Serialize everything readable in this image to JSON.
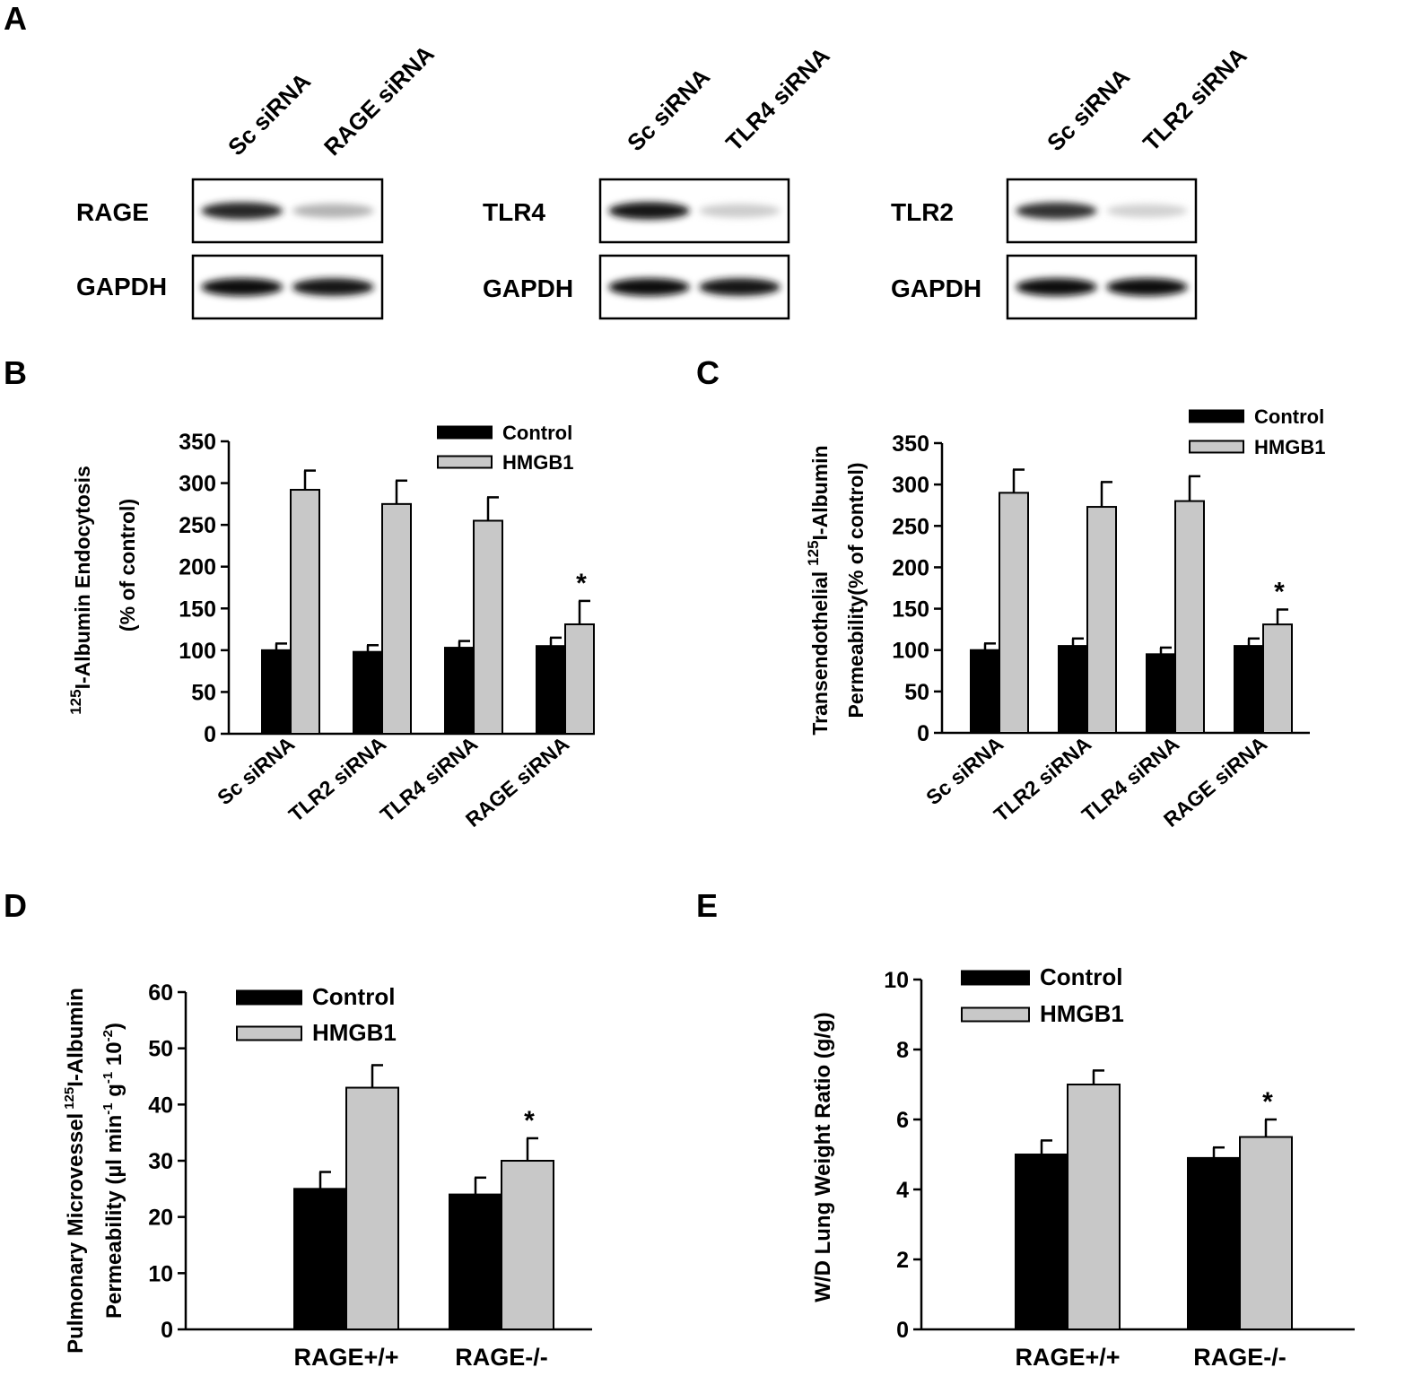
{
  "panel_a": {
    "letter": "A",
    "blots": [
      {
        "lanes": [
          "Sc siRNA",
          "RAGE siRNA"
        ],
        "rows": [
          {
            "label": "RAGE",
            "intensity": [
              0.85,
              0.3
            ]
          },
          {
            "label": "GAPDH",
            "intensity": [
              0.95,
              0.92
            ]
          }
        ]
      },
      {
        "lanes": [
          "Sc siRNA",
          "TLR4 siRNA"
        ],
        "rows": [
          {
            "label": "TLR4",
            "intensity": [
              0.9,
              0.2
            ]
          },
          {
            "label": "GAPDH",
            "intensity": [
              0.95,
              0.9
            ]
          }
        ]
      },
      {
        "lanes": [
          "Sc siRNA",
          "TLR2 siRNA"
        ],
        "rows": [
          {
            "label": "TLR2",
            "intensity": [
              0.8,
              0.18
            ]
          },
          {
            "label": "GAPDH",
            "intensity": [
              0.97,
              0.95
            ]
          }
        ]
      }
    ]
  },
  "colors": {
    "control": "#000000",
    "hmgb1": "#c8c8c8"
  },
  "chart_data": [
    {
      "panel": "B",
      "type": "bar",
      "categories": [
        "Sc siRNA",
        "TLR2 siRNA",
        "TLR4 siRNA",
        "RAGE siRNA"
      ],
      "series": [
        {
          "name": "Control",
          "values": [
            100,
            98,
            103,
            105
          ],
          "errors": [
            8,
            8,
            8,
            10
          ]
        },
        {
          "name": "HMGB1",
          "values": [
            292,
            275,
            255,
            131
          ],
          "errors": [
            23,
            28,
            28,
            28
          ]
        }
      ],
      "ylabel_sup": "125",
      "ylabel_line1": "I-Albumin Endocytosis",
      "ylabel_line2": "(% of control)",
      "yticks": [
        "0",
        "50",
        "100",
        "150",
        "200",
        "250",
        "300",
        "350"
      ],
      "ylim": [
        0,
        350
      ],
      "annotations": [
        {
          "category": "RAGE siRNA",
          "text": "*"
        }
      ],
      "legend": "top-right"
    },
    {
      "panel": "C",
      "type": "bar",
      "categories": [
        "Sc siRNA",
        "TLR2 siRNA",
        "TLR4 siRNA",
        "RAGE siRNA"
      ],
      "series": [
        {
          "name": "Control",
          "values": [
            100,
            105,
            95,
            105
          ],
          "errors": [
            8,
            9,
            8,
            9
          ]
        },
        {
          "name": "HMGB1",
          "values": [
            290,
            273,
            280,
            131
          ],
          "errors": [
            28,
            30,
            30,
            18
          ]
        }
      ],
      "ylabel_line1_pre": "Transendothelial",
      "ylabel_sup": "125",
      "ylabel_line1_post": "I-Albumin",
      "ylabel_line2": "Permeability(% of control)",
      "yticks": [
        "0",
        "50",
        "100",
        "150",
        "200",
        "250",
        "300",
        "350"
      ],
      "ylim": [
        0,
        350
      ],
      "annotations": [
        {
          "category": "RAGE siRNA",
          "text": "*"
        }
      ],
      "legend": "top-right"
    },
    {
      "panel": "D",
      "type": "bar",
      "categories": [
        "RAGE+/+",
        "RAGE-/-"
      ],
      "series": [
        {
          "name": "Control",
          "values": [
            25,
            24
          ],
          "errors": [
            3,
            3
          ]
        },
        {
          "name": "HMGB1",
          "values": [
            43,
            30
          ],
          "errors": [
            4,
            4
          ]
        }
      ],
      "ylabel_line1_pre": "Pulmonary Microvessel",
      "ylabel_sup": "125",
      "ylabel_line1_post": "I-Albumin",
      "ylabel_line2_pre": "Permeability (µl  min",
      "ylabel_sup2": "-1",
      "ylabel_line2_mid": " g",
      "ylabel_sup3": "-1",
      "ylabel_line2_post": "   10",
      "ylabel_sup4": "-2",
      "ylabel_line2_end": ")",
      "yticks": [
        "0",
        "10",
        "20",
        "30",
        "40",
        "50",
        "60"
      ],
      "ylim": [
        0,
        60
      ],
      "annotations": [
        {
          "category": "RAGE-/-",
          "text": "*"
        }
      ],
      "legend": "top-left"
    },
    {
      "panel": "E",
      "type": "bar",
      "categories": [
        "RAGE+/+",
        "RAGE-/-"
      ],
      "series": [
        {
          "name": "Control",
          "values": [
            5.0,
            4.9
          ],
          "errors": [
            0.4,
            0.3
          ]
        },
        {
          "name": "HMGB1",
          "values": [
            7.0,
            5.5
          ],
          "errors": [
            0.4,
            0.5
          ]
        }
      ],
      "ylabel": "W/D Lung Weight Ratio (g/g)",
      "yticks": [
        "0",
        "2",
        "4",
        "6",
        "8",
        "10"
      ],
      "ylim": [
        0,
        10
      ],
      "annotations": [
        {
          "category": "RAGE-/-",
          "text": "*"
        }
      ],
      "legend": "top-left"
    }
  ]
}
